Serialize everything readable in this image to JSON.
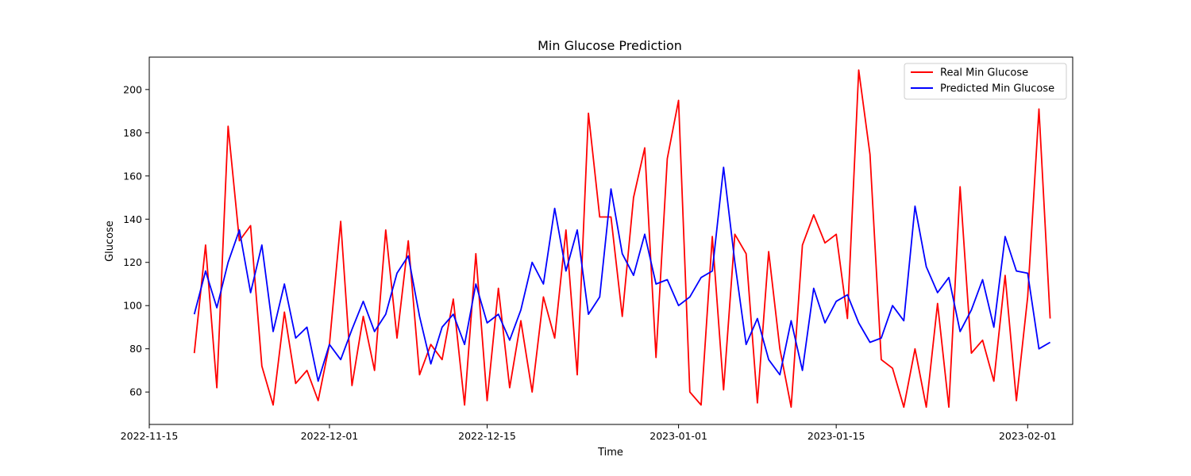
{
  "chart_data": {
    "type": "line",
    "title": "Min Glucose Prediction",
    "xlabel": "Time",
    "ylabel": "Glucose",
    "x_range": [
      "2022-11-15",
      "2023-02-05"
    ],
    "ylim": [
      45,
      215
    ],
    "x_ticks": [
      "2022-11-15",
      "2022-12-01",
      "2022-12-15",
      "2023-01-01",
      "2023-01-15",
      "2023-02-01"
    ],
    "y_ticks": [
      60,
      80,
      100,
      120,
      140,
      160,
      180,
      200
    ],
    "grid": false,
    "legend_position": "top-right",
    "x": [
      "2022-11-19",
      "2022-11-20",
      "2022-11-21",
      "2022-11-22",
      "2022-11-23",
      "2022-11-24",
      "2022-11-25",
      "2022-11-26",
      "2022-11-27",
      "2022-11-28",
      "2022-11-29",
      "2022-11-30",
      "2022-12-01",
      "2022-12-02",
      "2022-12-03",
      "2022-12-04",
      "2022-12-05",
      "2022-12-06",
      "2022-12-07",
      "2022-12-08",
      "2022-12-09",
      "2022-12-10",
      "2022-12-11",
      "2022-12-12",
      "2022-12-13",
      "2022-12-14",
      "2022-12-15",
      "2022-12-16",
      "2022-12-17",
      "2022-12-18",
      "2022-12-19",
      "2022-12-20",
      "2022-12-21",
      "2022-12-22",
      "2022-12-23",
      "2022-12-24",
      "2022-12-25",
      "2022-12-26",
      "2022-12-27",
      "2022-12-28",
      "2022-12-29",
      "2022-12-30",
      "2022-12-31",
      "2023-01-01",
      "2023-01-02",
      "2023-01-03",
      "2023-01-04",
      "2023-01-05",
      "2023-01-06",
      "2023-01-07",
      "2023-01-08",
      "2023-01-09",
      "2023-01-10",
      "2023-01-11",
      "2023-01-12",
      "2023-01-13",
      "2023-01-14",
      "2023-01-15",
      "2023-01-16",
      "2023-01-17",
      "2023-01-18",
      "2023-01-19",
      "2023-01-20",
      "2023-01-21",
      "2023-01-22",
      "2023-01-23",
      "2023-01-24",
      "2023-01-25",
      "2023-01-26",
      "2023-01-27",
      "2023-01-28",
      "2023-01-29",
      "2023-01-30",
      "2023-01-31",
      "2023-02-01",
      "2023-02-02",
      "2023-02-03"
    ],
    "series": [
      {
        "name": "Real Min Glucose",
        "color": "#ff0000",
        "values": [
          78,
          128,
          62,
          183,
          130,
          137,
          72,
          54,
          97,
          64,
          70,
          56,
          82,
          139,
          63,
          95,
          70,
          135,
          85,
          130,
          68,
          82,
          75,
          103,
          54,
          124,
          56,
          108,
          62,
          93,
          60,
          104,
          85,
          135,
          68,
          189,
          141,
          141,
          95,
          150,
          173,
          76,
          168,
          195,
          60,
          54,
          132,
          61,
          133,
          124,
          55,
          125,
          80,
          53,
          128,
          142,
          129,
          133,
          94,
          209,
          170,
          75,
          71,
          53,
          80,
          53,
          101,
          53,
          155,
          78,
          84,
          65,
          114,
          56,
          104,
          191,
          94
        ]
      },
      {
        "name": "Predicted Min Glucose",
        "color": "#0000ff",
        "values": [
          96,
          116,
          99,
          120,
          135,
          106,
          128,
          88,
          110,
          85,
          90,
          65,
          82,
          75,
          89,
          102,
          88,
          96,
          115,
          123,
          95,
          73,
          90,
          96,
          82,
          110,
          92,
          96,
          84,
          98,
          120,
          110,
          145,
          116,
          135,
          96,
          104,
          154,
          124,
          114,
          133,
          110,
          112,
          100,
          104,
          113,
          116,
          164,
          120,
          82,
          94,
          75,
          68,
          93,
          70,
          108,
          92,
          102,
          105,
          92,
          83,
          85,
          100,
          93,
          146,
          118,
          106,
          113,
          88,
          98,
          112,
          90,
          132,
          116,
          115,
          80,
          83
        ]
      }
    ]
  }
}
